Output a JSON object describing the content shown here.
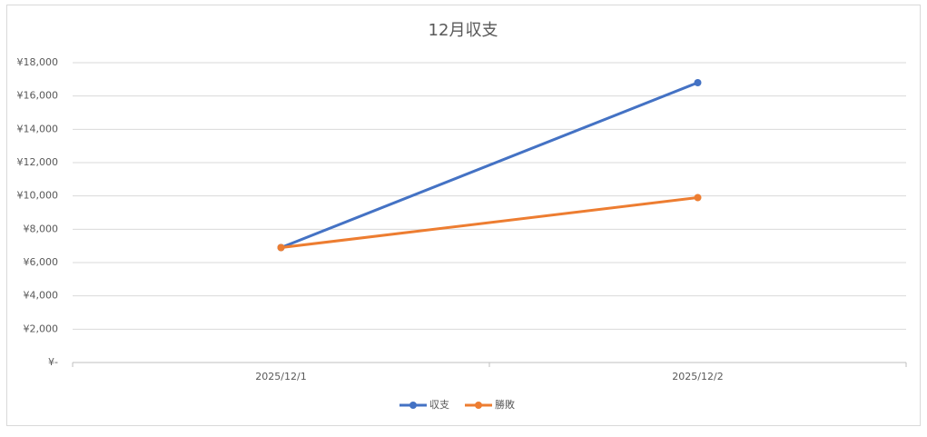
{
  "chart_data": {
    "type": "line",
    "title": "12月収支",
    "categories": [
      "2025/12/1",
      "2025/12/2"
    ],
    "series": [
      {
        "name": "収支",
        "color": "#4472c4",
        "values": [
          6900,
          16800
        ]
      },
      {
        "name": "勝敗",
        "color": "#ed7d31",
        "values": [
          6900,
          9900
        ]
      }
    ],
    "ylim": [
      0,
      18000
    ],
    "yticks": [
      {
        "value": 0,
        "label": "¥-"
      },
      {
        "value": 2000,
        "label": "¥2,000"
      },
      {
        "value": 4000,
        "label": "¥4,000"
      },
      {
        "value": 6000,
        "label": "¥6,000"
      },
      {
        "value": 8000,
        "label": "¥8,000"
      },
      {
        "value": 10000,
        "label": "¥10,000"
      },
      {
        "value": 12000,
        "label": "¥12,000"
      },
      {
        "value": 14000,
        "label": "¥14,000"
      },
      {
        "value": 16000,
        "label": "¥16,000"
      },
      {
        "value": 18000,
        "label": "¥18,000"
      }
    ],
    "grid": true,
    "legend": "bottom"
  }
}
